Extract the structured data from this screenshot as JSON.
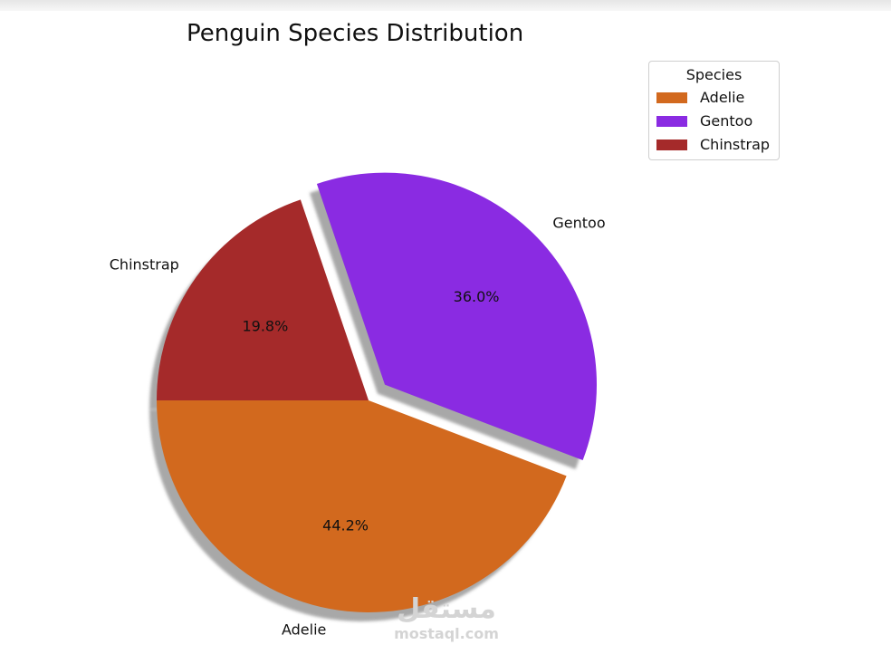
{
  "chart_data": {
    "type": "pie",
    "title": "Penguin Species Distribution",
    "categories": [
      "Adelie",
      "Gentoo",
      "Chinstrap"
    ],
    "values": [
      44.2,
      36.0,
      19.8
    ],
    "value_labels": [
      "44.2%",
      "36.0%",
      "19.8%"
    ],
    "colors": [
      "#d2691e",
      "#8a2be2",
      "#a52a2a"
    ],
    "exploded": [
      false,
      true,
      false
    ],
    "shadow": true,
    "start_angle_deg": 180,
    "legend": {
      "title": "Species",
      "placement": "top-right",
      "entries": [
        "Adelie",
        "Gentoo",
        "Chinstrap"
      ]
    }
  },
  "watermark": {
    "text_ar": "مستقل",
    "text_en": "mostaql.com"
  }
}
